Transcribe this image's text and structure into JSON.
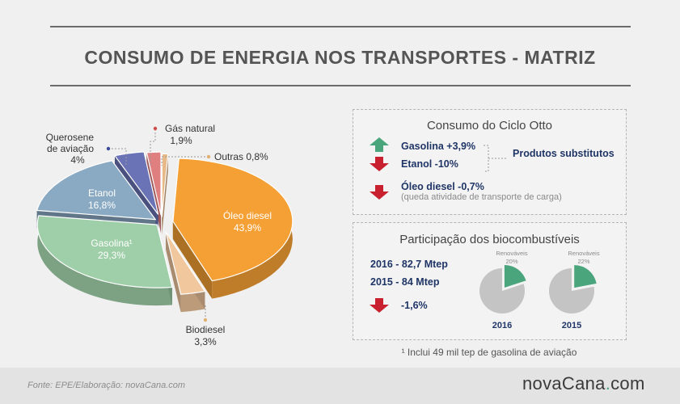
{
  "title": "CONSUMO DE ENERGIA NOS TRANSPORTES - MATRIZ",
  "chart_data": [
    {
      "type": "pie",
      "title": "",
      "slices": [
        {
          "name": "Óleo diesel",
          "value": 43.9,
          "label": "43,9%",
          "color": "#f5a035"
        },
        {
          "name": "Biodiesel",
          "value": 3.3,
          "label": "3,3%",
          "color": "#f1c79e"
        },
        {
          "name": "Gasolina¹",
          "value": 29.3,
          "label": "29,3%",
          "color": "#9fcfa8"
        },
        {
          "name": "Etanol",
          "value": 16.8,
          "label": "16,8%",
          "color": "#8aaac3"
        },
        {
          "name": "Querosene de aviação",
          "value": 4,
          "label": "4%",
          "color": "#6a73b6"
        },
        {
          "name": "Gás natural",
          "value": 1.9,
          "label": "1,9%",
          "color": "#e07f7f"
        },
        {
          "name": "Outras",
          "value": 0.8,
          "label": "0,8%",
          "color": "#e7b888"
        }
      ]
    },
    {
      "type": "pie",
      "title": "2016",
      "slices": [
        {
          "name": "Renováveis",
          "value": 20,
          "label": "20%",
          "color": "#4aa57c"
        },
        {
          "name": "Não renováveis",
          "value": 80,
          "color": "#c4c4c4"
        }
      ]
    },
    {
      "type": "pie",
      "title": "2015",
      "slices": [
        {
          "name": "Renováveis",
          "value": 22,
          "label": "22%",
          "color": "#4aa57c"
        },
        {
          "name": "Não renováveis",
          "value": 78,
          "color": "#c4c4c4"
        }
      ]
    }
  ],
  "pie_labels": {
    "oleo_name": "Óleo diesel",
    "oleo_val": "43,9%",
    "gas_name": "Gasolina¹",
    "gas_val": "29,3%",
    "etanol_name": "Etanol",
    "etanol_val": "16,8%",
    "biodiesel_name": "Biodiesel",
    "biodiesel_val": "3,3%",
    "querosene_line1": "Querosene",
    "querosene_line2": "de aviação",
    "querosene_val": "4%",
    "gasnat_name": "Gás natural",
    "gasnat_val": "1,9%",
    "outras": "Outras 0,8%"
  },
  "ciclo": {
    "title": "Consumo do Ciclo Otto",
    "gasolina": "Gasolina  +3,9%",
    "etanol": "Etanol  -10%",
    "substitutos": "Produtos substitutos",
    "diesel": "Óleo diesel  -0,7%",
    "diesel_note": "(queda atividade de transporte de carga)"
  },
  "bio": {
    "title": "Participação dos biocombustíveis",
    "line2016": "2016 - 82,7 Mtep",
    "line2015": "2015 - 84 Mtep",
    "change": "-1,6%",
    "renov_label": "Renováveis",
    "pct2016": "20%",
    "pct2015": "22%",
    "year2016": "2016",
    "year2015": "2015"
  },
  "footnote": "¹ Inclui 49 mil tep de gasolina de aviação",
  "footer": {
    "source": "Fonte: EPE/Elaboração: novaCana.com",
    "logo_a": "novaCana",
    "logo_dot": ".",
    "logo_b": "com"
  },
  "colors": {
    "up_arrow": "#4aa57c",
    "down_arrow": "#c8202e",
    "navy": "#1f3566"
  }
}
